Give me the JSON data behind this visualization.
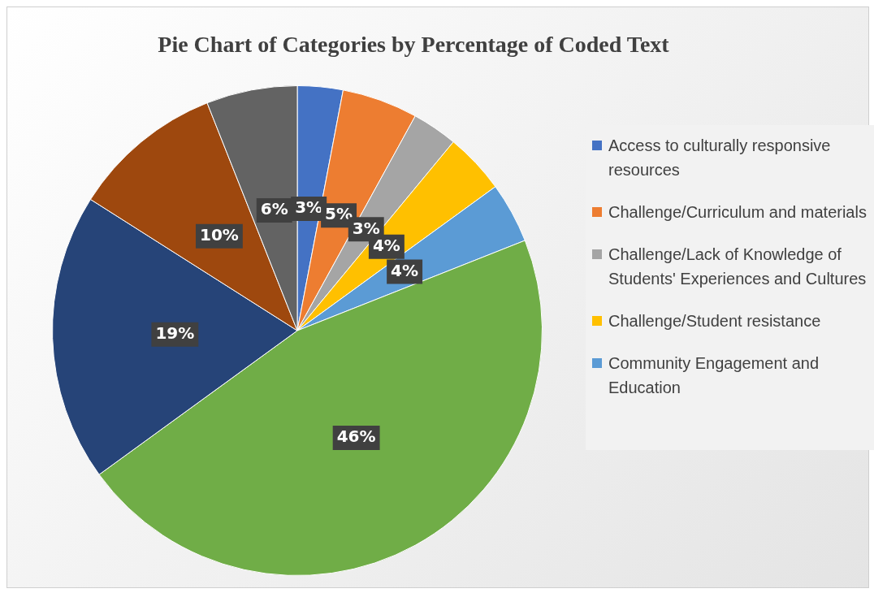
{
  "chart_data": {
    "type": "pie",
    "title": "Pie Chart of Categories by Percentage of Coded Text",
    "categories": [
      "Access to culturally responsive resources",
      "Challenge/Curriculum and materials",
      "Challenge/Lack of Knowledge of Students' Experiences and Cultures",
      "Challenge/Student resistance",
      "Community Engagement and Education",
      null,
      null,
      null,
      null
    ],
    "values": [
      3,
      5,
      3,
      4,
      4,
      46,
      19,
      10,
      6
    ],
    "value_labels": [
      "3%",
      "5%",
      "3%",
      "4%",
      "4%",
      "46%",
      "19%",
      "10%",
      "6%"
    ],
    "colors": [
      "#4472c4",
      "#ed7d31",
      "#a5a5a5",
      "#ffc000",
      "#5b9bd5",
      "#70ad47",
      "#264478",
      "#9e480e",
      "#636363"
    ],
    "legend": "right"
  }
}
